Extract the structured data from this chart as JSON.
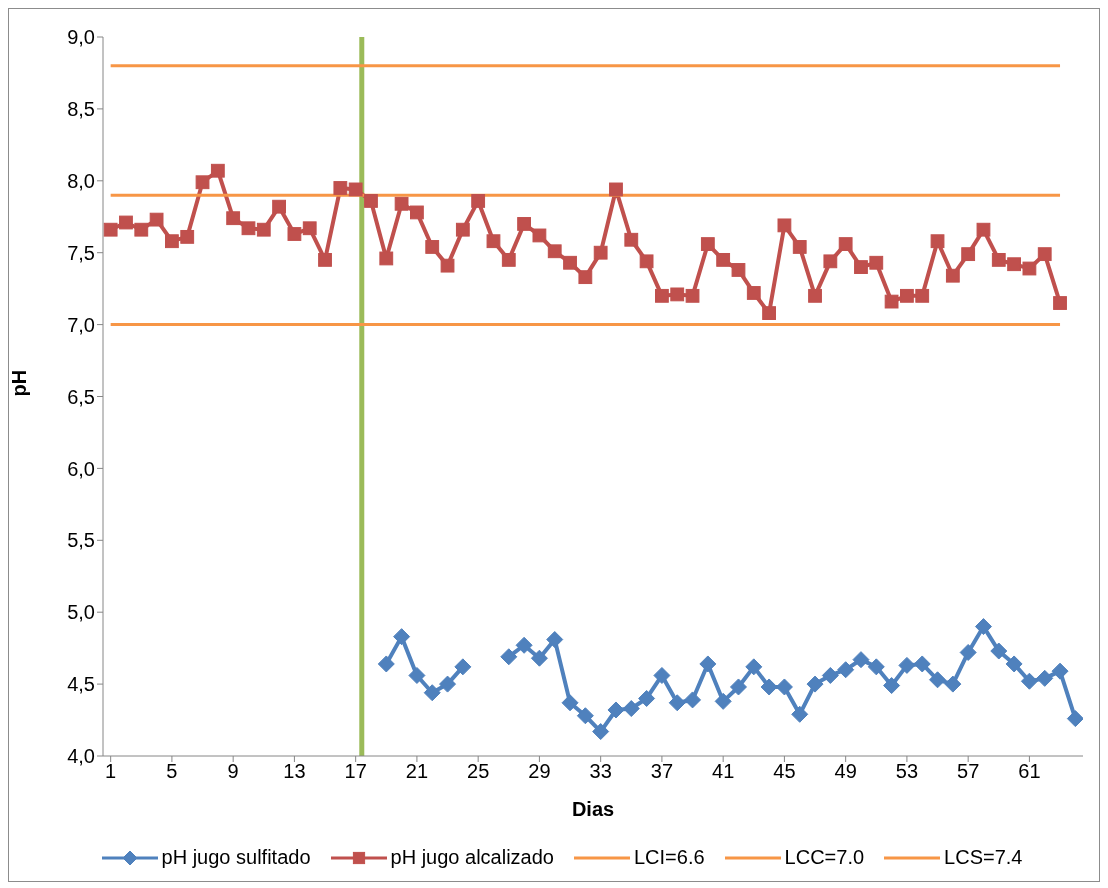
{
  "chart_data": {
    "type": "line",
    "xlabel": "Dias",
    "ylabel": "pH",
    "x": [
      1,
      2,
      3,
      4,
      5,
      6,
      7,
      8,
      9,
      10,
      11,
      12,
      13,
      14,
      15,
      16,
      17,
      18,
      19,
      20,
      21,
      22,
      23,
      24,
      25,
      26,
      27,
      28,
      29,
      30,
      31,
      32,
      33,
      34,
      35,
      36,
      37,
      38,
      39,
      40,
      41,
      42,
      43,
      44,
      45,
      46,
      47,
      48,
      49,
      50,
      51,
      52,
      53,
      54,
      55,
      56,
      57,
      58,
      59,
      60,
      61,
      62,
      63,
      64
    ],
    "xlim": [
      0.5,
      64.5
    ],
    "xticks": [
      1,
      5,
      9,
      13,
      17,
      21,
      25,
      29,
      33,
      37,
      41,
      45,
      49,
      53,
      57,
      61
    ],
    "ylim": [
      4,
      9
    ],
    "yticks": [
      {
        "value": 4,
        "label": "4,0"
      },
      {
        "value": 4.5,
        "label": "4,5"
      },
      {
        "value": 5,
        "label": "5,0"
      },
      {
        "value": 5.5,
        "label": "5,5"
      },
      {
        "value": 6,
        "label": "6,0"
      },
      {
        "value": 6.5,
        "label": "6,5"
      },
      {
        "value": 7,
        "label": "7,0"
      },
      {
        "value": 7.5,
        "label": "7,5"
      },
      {
        "value": 8,
        "label": "8,0"
      },
      {
        "value": 8.5,
        "label": "8,5"
      },
      {
        "value": 9,
        "label": "9,0"
      }
    ],
    "grid": false,
    "legend": "bottom",
    "line_style": "solid",
    "series": [
      {
        "name": "pH jugo sulfitado",
        "color": "#4f81bd",
        "marker": "diamond",
        "values": [
          null,
          null,
          null,
          null,
          null,
          null,
          null,
          null,
          null,
          null,
          null,
          null,
          null,
          null,
          null,
          null,
          null,
          null,
          4.64,
          4.83,
          4.56,
          4.44,
          4.5,
          4.62,
          null,
          null,
          4.69,
          4.77,
          4.68,
          4.81,
          4.37,
          4.28,
          4.17,
          4.32,
          4.33,
          4.4,
          4.56,
          4.37,
          4.39,
          4.64,
          4.38,
          4.48,
          4.62,
          4.48,
          4.48,
          4.29,
          4.5,
          4.56,
          4.6,
          4.67,
          4.62,
          4.49,
          4.63,
          4.64,
          4.53,
          4.5,
          4.72,
          4.9,
          4.73,
          4.64,
          4.52,
          4.54,
          4.59,
          4.26
        ]
      },
      {
        "name": "pH jugo alcalizado",
        "color": "#c0504d",
        "marker": "square",
        "values": [
          7.66,
          7.71,
          7.66,
          7.73,
          7.58,
          7.61,
          7.99,
          8.07,
          7.74,
          7.67,
          7.66,
          7.82,
          7.63,
          7.67,
          7.45,
          7.95,
          7.94,
          7.86,
          7.46,
          7.84,
          7.78,
          7.54,
          7.41,
          7.66,
          7.86,
          7.58,
          7.45,
          7.7,
          7.62,
          7.51,
          7.43,
          7.33,
          7.5,
          7.94,
          7.59,
          7.44,
          7.2,
          7.21,
          7.2,
          7.56,
          7.45,
          7.38,
          7.22,
          7.08,
          7.69,
          7.54,
          7.2,
          7.44,
          7.56,
          7.4,
          7.43,
          7.16,
          7.2,
          7.2,
          7.58,
          7.34,
          7.49,
          7.66,
          7.45,
          7.42,
          7.39,
          7.49,
          7.15,
          null
        ]
      },
      {
        "name": "LCI=6.6",
        "color": "#f79646",
        "marker": "none",
        "values": [
          7,
          7,
          7,
          7,
          7,
          7,
          7,
          7,
          7,
          7,
          7,
          7,
          7,
          7,
          7,
          7,
          7,
          7,
          7,
          7,
          7,
          7,
          7,
          7,
          7,
          7,
          7,
          7,
          7,
          7,
          7,
          7,
          7,
          7,
          7,
          7,
          7,
          7,
          7,
          7,
          7,
          7,
          7,
          7,
          7,
          7,
          7,
          7,
          7,
          7,
          7,
          7,
          7,
          7,
          7,
          7,
          7,
          7,
          7,
          7,
          7,
          7,
          7,
          null
        ]
      },
      {
        "name": "LCC=7.0",
        "color": "#f79646",
        "marker": "none",
        "values": [
          7.9,
          7.9,
          7.9,
          7.9,
          7.9,
          7.9,
          7.9,
          7.9,
          7.9,
          7.9,
          7.9,
          7.9,
          7.9,
          7.9,
          7.9,
          7.9,
          7.9,
          7.9,
          7.9,
          7.9,
          7.9,
          7.9,
          7.9,
          7.9,
          7.9,
          7.9,
          7.9,
          7.9,
          7.9,
          7.9,
          7.9,
          7.9,
          7.9,
          7.9,
          7.9,
          7.9,
          7.9,
          7.9,
          7.9,
          7.9,
          7.9,
          7.9,
          7.9,
          7.9,
          7.9,
          7.9,
          7.9,
          7.9,
          7.9,
          7.9,
          7.9,
          7.9,
          7.9,
          7.9,
          7.9,
          7.9,
          7.9,
          7.9,
          7.9,
          7.9,
          7.9,
          7.9,
          7.9,
          null
        ]
      },
      {
        "name": "LCS=7.4",
        "color": "#f79646",
        "marker": "none",
        "values": [
          8.8,
          8.8,
          8.8,
          8.8,
          8.8,
          8.8,
          8.8,
          8.8,
          8.8,
          8.8,
          8.8,
          8.8,
          8.8,
          8.8,
          8.8,
          8.8,
          8.8,
          8.8,
          8.8,
          8.8,
          8.8,
          8.8,
          8.8,
          8.8,
          8.8,
          8.8,
          8.8,
          8.8,
          8.8,
          8.8,
          8.8,
          8.8,
          8.8,
          8.8,
          8.8,
          8.8,
          8.8,
          8.8,
          8.8,
          8.8,
          8.8,
          8.8,
          8.8,
          8.8,
          8.8,
          8.8,
          8.8,
          8.8,
          8.8,
          8.8,
          8.8,
          8.8,
          8.8,
          8.8,
          8.8,
          8.8,
          8.8,
          8.8,
          8.8,
          8.8,
          8.8,
          8.8,
          8.8,
          null
        ]
      }
    ],
    "ref_lines": [
      {
        "axis": "x",
        "value": 17.4,
        "color": "#9bbb59",
        "line_style": "solid"
      }
    ]
  }
}
